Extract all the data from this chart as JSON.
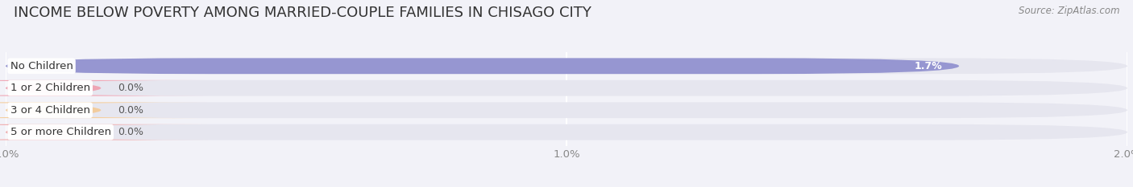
{
  "title": "INCOME BELOW POVERTY AMONG MARRIED-COUPLE FAMILIES IN CHISAGO CITY",
  "source": "Source: ZipAtlas.com",
  "categories": [
    "No Children",
    "1 or 2 Children",
    "3 or 4 Children",
    "5 or more Children"
  ],
  "values": [
    1.7,
    0.0,
    0.0,
    0.0
  ],
  "bar_colors": [
    "#8888cc",
    "#f09aaa",
    "#f5c890",
    "#f0a0a0"
  ],
  "xlim": [
    0,
    2.0
  ],
  "xticks": [
    0.0,
    1.0,
    2.0
  ],
  "xtick_labels": [
    "0.0%",
    "1.0%",
    "2.0%"
  ],
  "bar_height": 0.72,
  "background_color": "#f2f2f8",
  "bar_bg_color": "#e6e6ef",
  "title_fontsize": 13,
  "label_fontsize": 9.5,
  "value_fontsize": 9
}
